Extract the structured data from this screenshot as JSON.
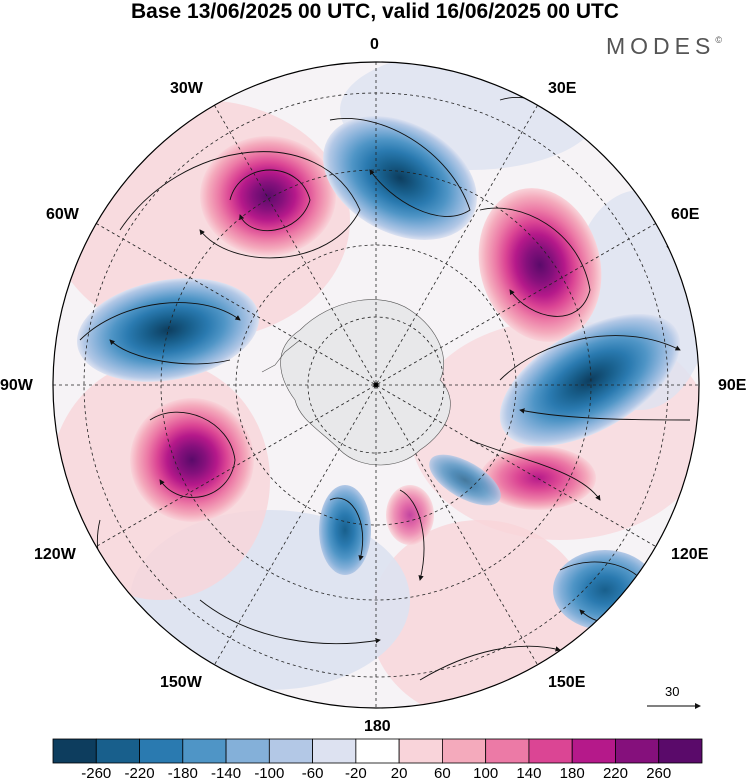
{
  "title": "Base 13/06/2025 00 UTC, valid 16/06/2025 00 UTC",
  "brand": "MODES",
  "brand_mark": "©",
  "labels": {
    "lon_0": "0",
    "lon_30e": "30E",
    "lon_60e": "60E",
    "lon_90e": "90E",
    "lon_120e": "120E",
    "lon_150e": "150E",
    "lon_180": "180",
    "lon_150w": "150W",
    "lon_120w": "120W",
    "lon_90w": "90W",
    "lon_60w": "60W",
    "lon_30w": "30W"
  },
  "reference_vector": "30",
  "colorbar": {
    "ticks": [
      "-260",
      "-220",
      "-180",
      "-140",
      "-100",
      "-60",
      "-20",
      "20",
      "60",
      "100",
      "140",
      "180",
      "220",
      "260"
    ],
    "colors": [
      "#0d3d5e",
      "#185f8c",
      "#2a7ab0",
      "#4f95c6",
      "#84b0d9",
      "#b3c8e6",
      "#dde2f1",
      "#ffffff",
      "#f9d4da",
      "#f4aabc",
      "#ec7aa6",
      "#db4594",
      "#b5198a",
      "#85107c",
      "#5a0a6a"
    ]
  },
  "map": {
    "projection": "south polar stereographic",
    "anomaly_centers": [
      {
        "lon_label": "30W-0",
        "sign": "positive",
        "max_level": "260"
      },
      {
        "lon_label": "0-30E",
        "sign": "negative",
        "max_level": "-260"
      },
      {
        "lon_label": "60E",
        "sign": "positive",
        "max_level": "260"
      },
      {
        "lon_label": "90E",
        "sign": "negative",
        "max_level": "-260"
      },
      {
        "lon_label": "90W-60W",
        "sign": "negative",
        "max_level": "-260"
      },
      {
        "lon_label": "120W-90W",
        "sign": "positive",
        "max_level": "260"
      },
      {
        "lon_label": "120E",
        "sign": "positive",
        "max_level": "220"
      },
      {
        "lon_label": "120E-150E",
        "sign": "negative",
        "max_level": "-220"
      },
      {
        "lon_label": "150W-180",
        "sign": "negative",
        "max_level": "-220"
      }
    ]
  }
}
